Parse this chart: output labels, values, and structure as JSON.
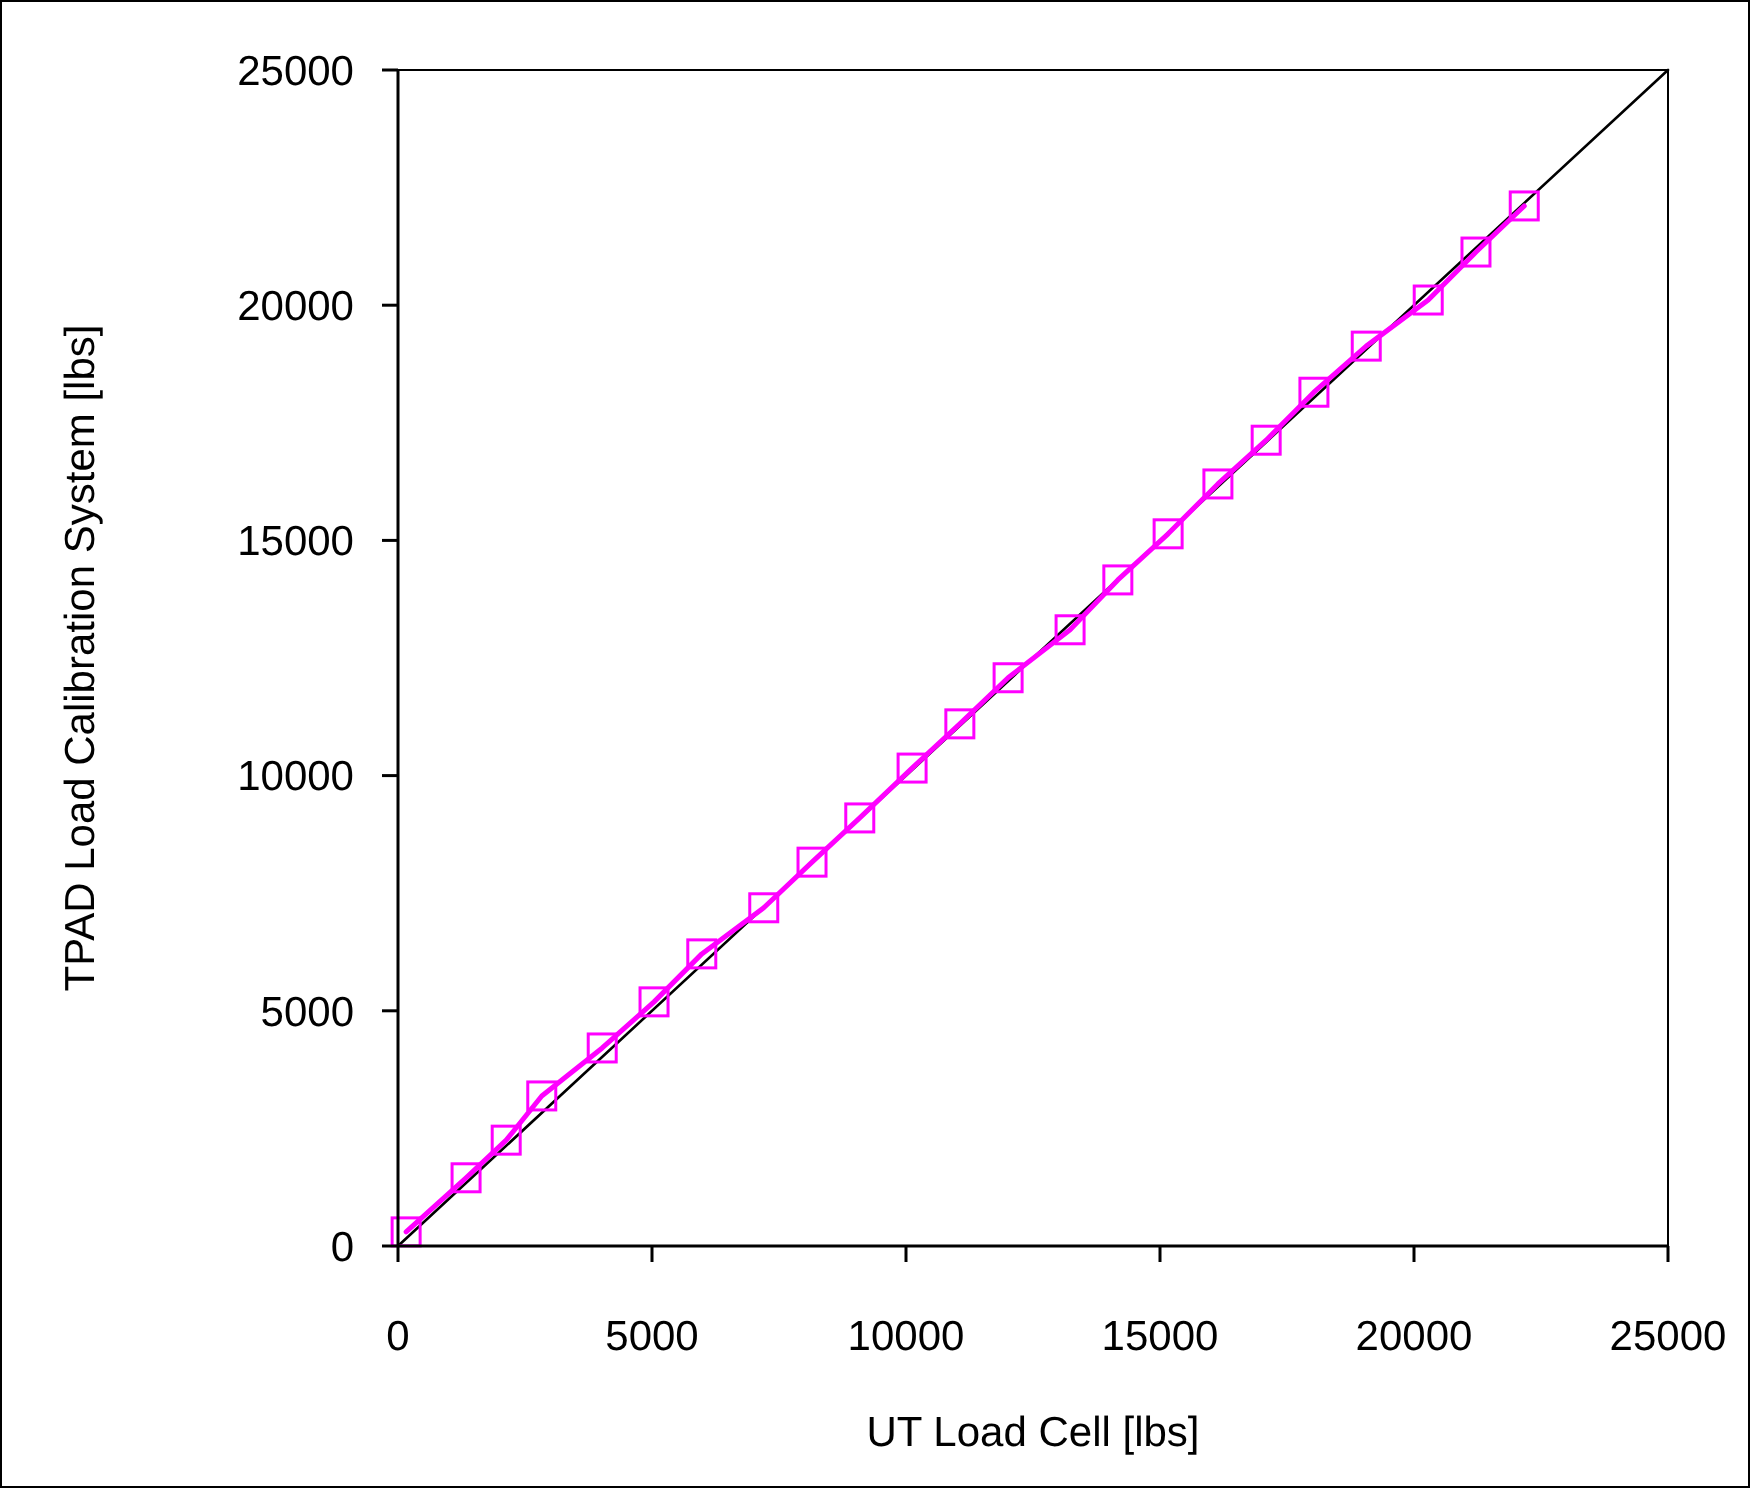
{
  "chart_data": {
    "type": "line",
    "xlabel": "UT Load Cell [lbs]",
    "ylabel": "TPAD Load Calibration System [lbs]",
    "xlim": [
      0,
      25000
    ],
    "ylim": [
      0,
      25000
    ],
    "xticks": [
      0,
      5000,
      10000,
      15000,
      20000,
      25000
    ],
    "yticks": [
      0,
      5000,
      10000,
      15000,
      20000,
      25000
    ],
    "series": [
      {
        "color": "#000000",
        "marker": "none",
        "x": [
          0,
          25000
        ],
        "values": [
          0,
          25000
        ]
      },
      {
        "color": "#ff00ff",
        "marker": "square",
        "x": [
          160,
          1340,
          2130,
          2830,
          4020,
          5040,
          5980,
          7200,
          8150,
          9090,
          10120,
          11060,
          12010,
          13230,
          14170,
          15160,
          16140,
          17090,
          18030,
          19060,
          20280,
          21220,
          22170
        ],
        "values": [
          300,
          1450,
          2250,
          3190,
          4210,
          5190,
          6210,
          7190,
          8160,
          9100,
          10160,
          11100,
          12080,
          13100,
          14160,
          15140,
          16200,
          17130,
          18150,
          19130,
          20110,
          21130,
          22110
        ]
      }
    ]
  }
}
